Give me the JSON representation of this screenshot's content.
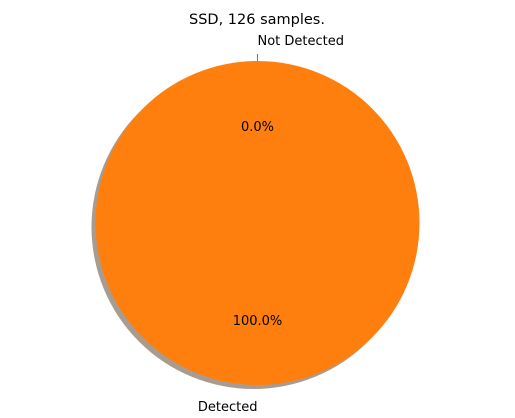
{
  "chart_data": {
    "type": "pie",
    "title": "SSD, 126 samples.",
    "slices": [
      {
        "label": "Not Detected",
        "value": 0,
        "percent_label": "0.0%",
        "color": "#1f77b4"
      },
      {
        "label": "Detected",
        "value": 126,
        "percent_label": "100.0%",
        "color": "#ff7f0e"
      }
    ],
    "total_samples": 126,
    "shadow": true,
    "legend": "none",
    "start_angle_deg": 90,
    "direction": "counterclockwise"
  }
}
